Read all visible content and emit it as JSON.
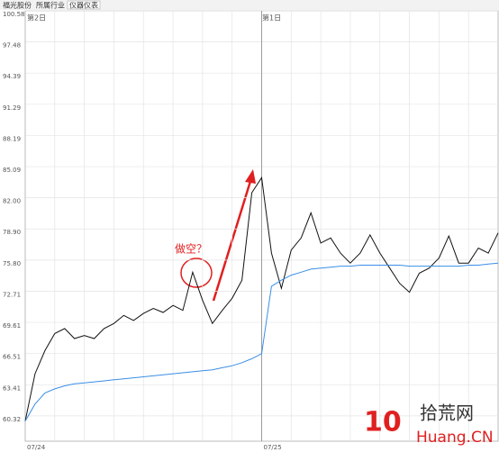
{
  "tabs": [
    "福光股份",
    "所属行业",
    "仪器仪表"
  ],
  "chart_data": {
    "type": "line",
    "day_labels": [
      "第2日",
      "第1日"
    ],
    "annotation": "做空？",
    "watermark": {
      "number": "10",
      "site": "拾荒网",
      "domain": "Huang.CN"
    },
    "x": [
      0,
      10,
      20,
      30,
      40,
      50,
      60,
      70,
      80,
      90,
      100,
      110,
      120,
      130,
      140,
      150,
      160,
      170,
      180,
      190,
      200,
      210,
      220,
      230,
      240,
      250,
      260,
      270,
      280,
      290,
      300,
      310,
      320,
      330,
      340,
      350,
      360,
      370,
      380,
      390,
      400,
      410,
      420,
      430,
      440,
      450,
      460,
      470,
      480
    ],
    "xlim": [
      0,
      480
    ],
    "xticks": [
      {
        "value": 0,
        "label": "07/24"
      },
      {
        "value": 240,
        "label": "07/25"
      }
    ],
    "ylim": [
      57.8,
      100.58
    ],
    "yticks": [
      100.58,
      97.48,
      94.39,
      91.29,
      88.19,
      85.09,
      {
        "value": 82,
        "label": "82.00"
      },
      {
        "value": 78.9,
        "label": "78.90"
      },
      {
        "value": 75.8,
        "label": "75.80"
      },
      72.71,
      69.61,
      66.51,
      63.41,
      60.32
    ],
    "grid": true,
    "series": [
      {
        "name": "price",
        "color": "#111111",
        "values": [
          59.8,
          64.5,
          66.8,
          68.5,
          69.0,
          68.0,
          68.3,
          68.0,
          69.0,
          69.5,
          70.3,
          69.8,
          70.5,
          71.0,
          70.6,
          71.3,
          70.8,
          74.6,
          71.8,
          69.5,
          70.8,
          72.0,
          73.8,
          82.5,
          84.0,
          76.5,
          73.0,
          76.8,
          78.0,
          80.5,
          77.5,
          78.0,
          76.5,
          75.5,
          76.5,
          78.3,
          76.5,
          75.0,
          73.5,
          72.6,
          74.5,
          75.0,
          76.0,
          78.2,
          75.5,
          75.5,
          77.0,
          76.5,
          78.5
        ]
      },
      {
        "name": "average",
        "color": "#3a8ee6",
        "values": [
          59.8,
          61.5,
          62.6,
          63.0,
          63.3,
          63.5,
          63.6,
          63.7,
          63.8,
          63.9,
          64.0,
          64.1,
          64.2,
          64.3,
          64.4,
          64.5,
          64.6,
          64.7,
          64.8,
          64.9,
          65.1,
          65.3,
          65.6,
          66.0,
          66.5,
          73.2,
          73.8,
          74.3,
          74.6,
          74.9,
          75.0,
          75.1,
          75.2,
          75.2,
          75.3,
          75.3,
          75.3,
          75.3,
          75.3,
          75.2,
          75.2,
          75.2,
          75.2,
          75.2,
          75.2,
          75.3,
          75.3,
          75.4,
          75.5
        ]
      }
    ]
  }
}
